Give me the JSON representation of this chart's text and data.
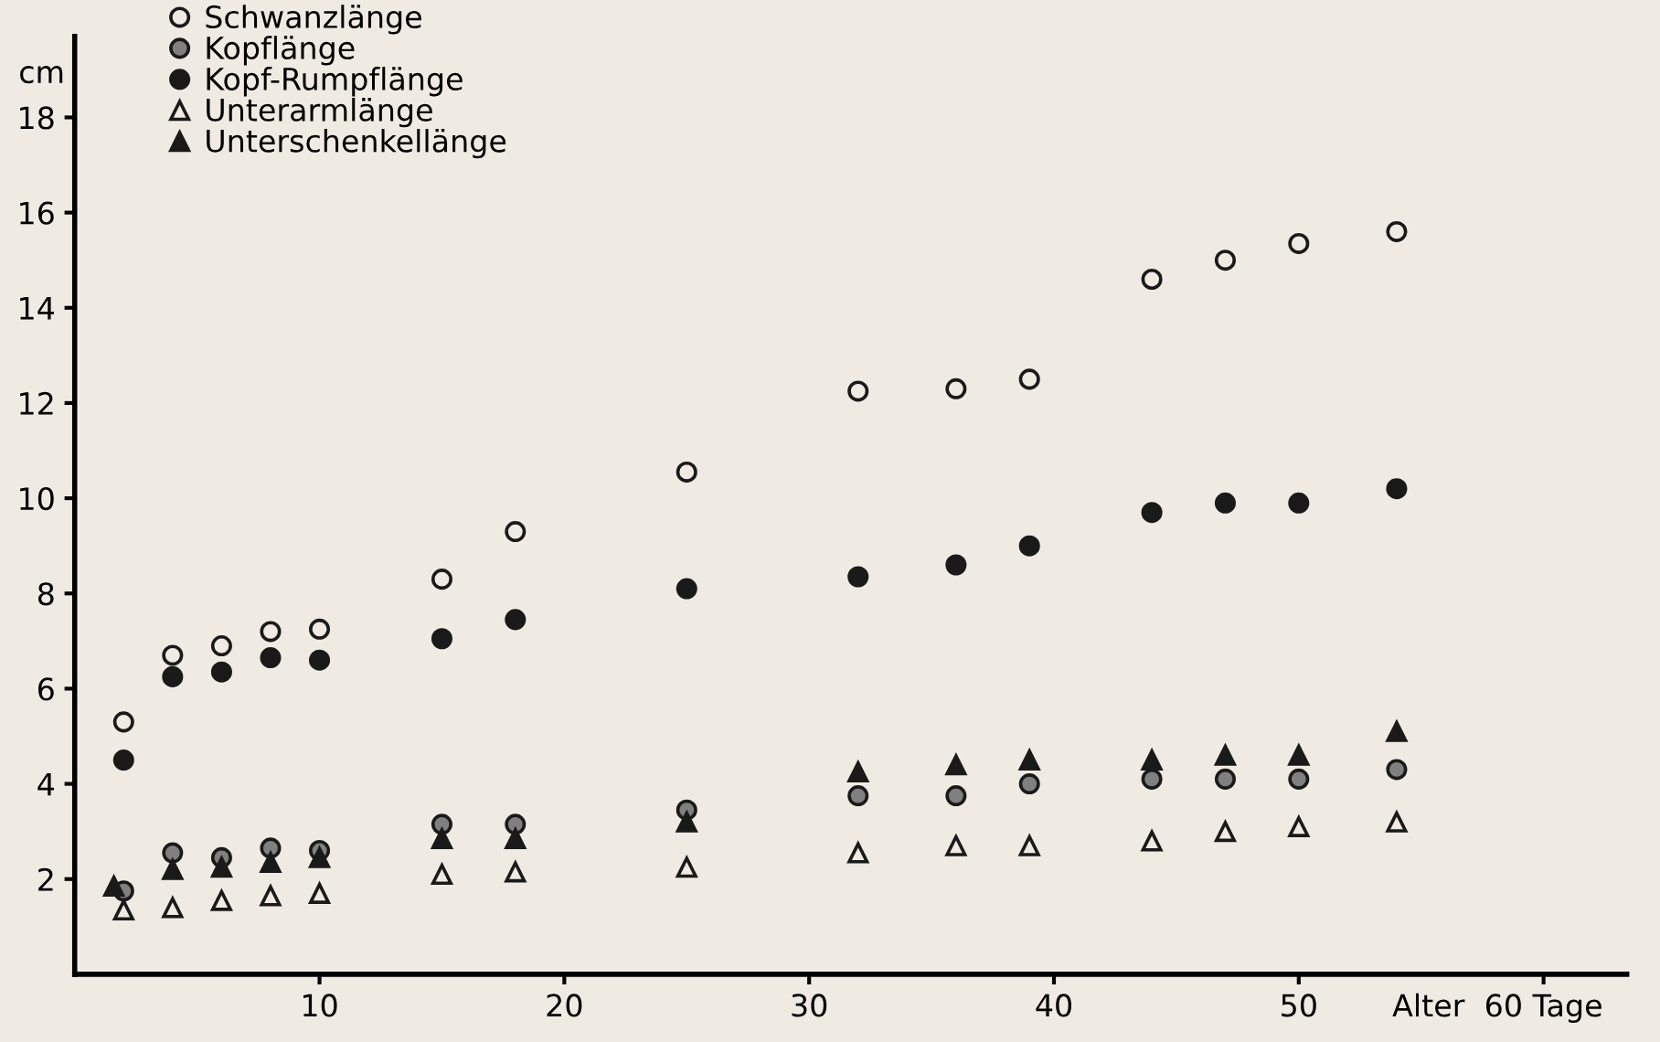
{
  "chart_data": {
    "type": "scatter",
    "xlabel": "Alter",
    "ylabel": "cm",
    "x": [
      2,
      4,
      6,
      8,
      10,
      15,
      18,
      25,
      32,
      36,
      39,
      44,
      47,
      50,
      54
    ],
    "series": [
      {
        "name": "Schwanzlänge",
        "color": "#efebe3",
        "marker": "circle",
        "values": [
          5.3,
          6.7,
          6.9,
          7.2,
          7.25,
          8.3,
          9.3,
          10.55,
          12.25,
          12.3,
          12.5,
          14.6,
          15.0,
          15.35,
          15.6
        ]
      },
      {
        "name": "Kopflänge",
        "color": "#808080",
        "marker": "circle",
        "values": [
          1.75,
          2.55,
          2.45,
          2.65,
          2.6,
          3.15,
          3.15,
          3.45,
          3.75,
          3.75,
          4.0,
          4.1,
          4.1,
          4.1,
          4.3
        ]
      },
      {
        "name": "Kopf-Rumpflänge",
        "color": "#1a1a1a",
        "marker": "circle",
        "values": [
          4.5,
          6.25,
          6.35,
          6.65,
          6.6,
          7.05,
          7.45,
          8.1,
          8.35,
          8.6,
          9.0,
          9.7,
          9.9,
          9.9,
          10.2
        ]
      },
      {
        "name": "Unterarmlänge",
        "color": "#efebe3",
        "marker": "triangle",
        "values": [
          1.35,
          1.4,
          1.55,
          1.65,
          1.7,
          2.1,
          2.15,
          2.25,
          2.55,
          2.7,
          2.7,
          2.8,
          3.0,
          3.1,
          3.2
        ]
      },
      {
        "name": "Unterschenkellänge",
        "color": "#1a1a1a",
        "marker": "triangle",
        "x": [
          1.6,
          4,
          6,
          8,
          10,
          15,
          18,
          25,
          32,
          36,
          39,
          44,
          47,
          50,
          54
        ],
        "values": [
          1.85,
          2.2,
          2.25,
          2.35,
          2.45,
          2.85,
          2.85,
          3.2,
          4.25,
          4.4,
          4.5,
          4.5,
          4.6,
          4.6,
          5.1
        ]
      }
    ],
    "xlim": [
      0,
      63.4
    ],
    "ylim": [
      0,
      19.7
    ],
    "xticks": [
      10,
      20,
      30,
      40,
      50,
      {
        "value": 60,
        "label": "60 Tage"
      }
    ],
    "yticks": [
      2,
      4,
      6,
      8,
      10,
      12,
      14,
      16,
      18
    ],
    "grid": false,
    "legend": "top left"
  }
}
